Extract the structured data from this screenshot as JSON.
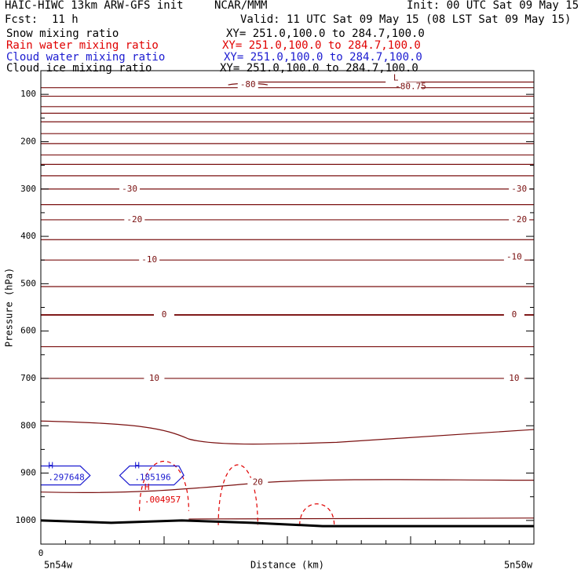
{
  "header": {
    "model": "HAIC-HIWC 13km ARW-GFS init",
    "org": "NCAR/MMM",
    "init": "Init: 00 UTC Sat 09 May 15",
    "fcst_label": "Fcst:",
    "fcst_value": "11 h",
    "valid": "Valid: 11 UTC Sat 09 May 15 (08 LST Sat 09 May 15)"
  },
  "fields": [
    {
      "name": "Snow mixing ratio",
      "xy": "XY= 251.0,100.0 to 284.7,100.0",
      "color": "#000000"
    },
    {
      "name": "Rain water mixing ratio",
      "xy": "XY= 251.0,100.0 to 284.7,100.0",
      "color": "#e00000"
    },
    {
      "name": "Cloud water mixing ratio",
      "xy": "XY= 251.0,100.0 to 284.7,100.0",
      "color": "#1a1ad0"
    },
    {
      "name": "Cloud ice mixing ratio",
      "xy": "XY= 251.0,100.0 to 284.7,100.0",
      "color": "#000000"
    }
  ],
  "colors": {
    "temperature": "#7a1010",
    "rain": "#e00000",
    "cloud": "#1a1ad0",
    "terrain": "#000000"
  },
  "chart_data": {
    "type": "line",
    "title": "",
    "xlabel": "Distance (km)",
    "ylabel": "Pressure (hPa)",
    "xlim": [
      0,
      100
    ],
    "ylim": [
      1050,
      50
    ],
    "x_start_label": "0",
    "x_end_labels": {
      "left": "5n54w",
      "right": "5n50w"
    },
    "yticks": [
      100,
      200,
      300,
      400,
      500,
      600,
      700,
      800,
      900,
      1000
    ],
    "isotherm_pressures": [
      74,
      86,
      104,
      126,
      140,
      158,
      183,
      204,
      228,
      248,
      272,
      300,
      333,
      365,
      407,
      450,
      506,
      566,
      633,
      700,
      790,
      915,
      1000
    ],
    "isotherm_labels": [
      {
        "text": "-80",
        "x": 42,
        "p": 80
      },
      {
        "text": "-80.75",
        "x": 75,
        "p": 84
      },
      {
        "text": "L",
        "x": 72,
        "p": 66
      },
      {
        "text": "-30",
        "x": 18,
        "p": 300
      },
      {
        "text": "-30",
        "x": 97,
        "p": 300
      },
      {
        "text": "-20",
        "x": 19,
        "p": 365
      },
      {
        "text": "-20",
        "x": 97,
        "p": 365
      },
      {
        "text": "-10",
        "x": 22,
        "p": 450
      },
      {
        "text": "-10",
        "x": 96,
        "p": 444
      },
      {
        "text": "0",
        "x": 25,
        "p": 566
      },
      {
        "text": "0",
        "x": 96,
        "p": 566
      },
      {
        "text": "10",
        "x": 23,
        "p": 700
      },
      {
        "text": "10",
        "x": 96,
        "p": 700
      },
      {
        "text": "20",
        "x": 44,
        "p": 920
      }
    ],
    "rain_cells": [
      {
        "x_center": 25,
        "half_width": 5,
        "p_top": 840,
        "p_base": 980
      },
      {
        "x_center": 40,
        "half_width": 4,
        "p_top": 840,
        "p_base": 1010
      },
      {
        "x_center": 56,
        "half_width": 3.5,
        "p_top": 950,
        "p_base": 1010
      }
    ],
    "rain_max": {
      "label": "H",
      "value": ".004957",
      "x": 21,
      "p": 957
    },
    "cloud_max": [
      {
        "label": "H",
        "value": ".297648",
        "x": 1.5,
        "p": 905
      },
      {
        "label": "H",
        "value": ".185196",
        "x": 19,
        "p": 905
      }
    ],
    "terrain_p": [
      1000,
      1005,
      1000,
      1005,
      1012,
      1012,
      1012,
      1012
    ]
  }
}
